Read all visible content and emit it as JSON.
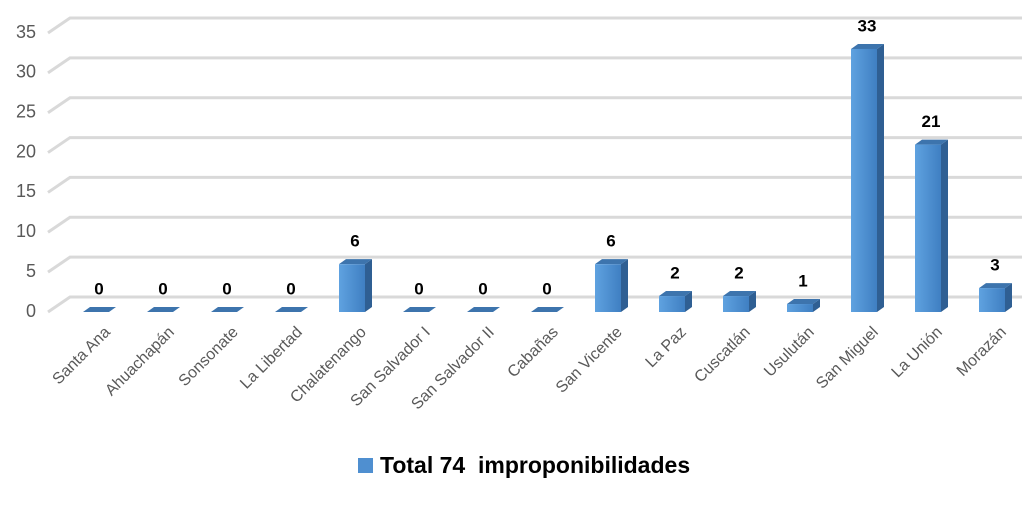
{
  "chart_data": {
    "type": "bar",
    "categories": [
      "Santa Ana",
      "Ahuachapán",
      "Sonsonate",
      "La Libertad",
      "Chalatenango",
      "San Salvador I",
      "San Salvador II",
      "Cabañas",
      "San Vicente",
      "La Paz",
      "Cuscatlán",
      "Usulután",
      "San Miguel",
      "La Unión",
      "Morazán"
    ],
    "series": [
      {
        "name": "Total 74  improponibilidades",
        "color": "#4f8fd0",
        "values": [
          0,
          0,
          0,
          0,
          6,
          0,
          0,
          0,
          6,
          2,
          2,
          1,
          33,
          21,
          3
        ]
      }
    ],
    "ylim": [
      0,
      35
    ],
    "yticks": [
      0,
      5,
      10,
      15,
      20,
      25,
      30,
      35
    ],
    "grid": true,
    "legend": "bottom",
    "data_labels": true
  }
}
